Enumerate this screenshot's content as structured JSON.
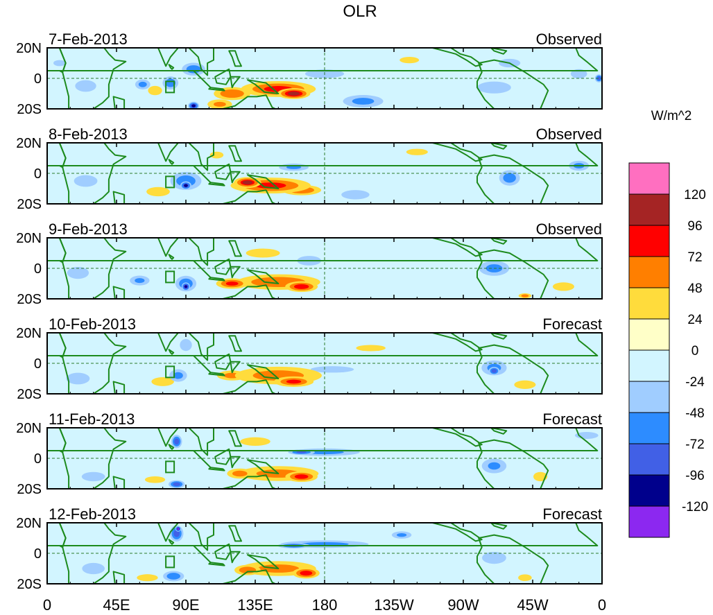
{
  "chart_data": {
    "type": "heatmap",
    "title": "OLR",
    "colorbar_label": "W/m^2",
    "x_ticks": [
      "0",
      "45E",
      "90E",
      "135E",
      "180",
      "135W",
      "90W",
      "45W",
      "0"
    ],
    "x_tick_lon": [
      0,
      45,
      90,
      135,
      180,
      225,
      270,
      315,
      360
    ],
    "y_ticks": [
      "20N",
      "0",
      "20S"
    ],
    "y_tick_lat": [
      20,
      0,
      -20
    ],
    "xlim": [
      0,
      360
    ],
    "ylim": [
      -20,
      20
    ],
    "levels": [
      "120",
      "96",
      "72",
      "48",
      "24",
      "0",
      "-24",
      "-48",
      "-72",
      "-96",
      "-120"
    ],
    "colors": [
      "#ff6fc0",
      "#a52424",
      "#ff0000",
      "#ff7f00",
      "#ffdc3c",
      "#ffffc8",
      "#d2f5ff",
      "#a0cdff",
      "#2d8cff",
      "#4160e6",
      "#00008c",
      "#8c28f0"
    ],
    "reference_lines": {
      "equator_lat": 0,
      "dateline_lon": 180
    },
    "panels": [
      {
        "date": "7-Feb-2013",
        "label": "Observed",
        "blobs": [
          {
            "lon": 150,
            "lat": -7,
            "rx": 28,
            "ry": 6,
            "v": 80
          },
          {
            "lon": 160,
            "lat": -10,
            "rx": 12,
            "ry": 4,
            "v": 105
          },
          {
            "lon": 120,
            "lat": -10,
            "rx": 14,
            "ry": 5,
            "v": 70
          },
          {
            "lon": 112,
            "lat": -17,
            "rx": 10,
            "ry": 4,
            "v": 50
          },
          {
            "lon": 70,
            "lat": -8,
            "rx": 6,
            "ry": 4,
            "v": 40
          },
          {
            "lon": 95,
            "lat": 6,
            "rx": 9,
            "ry": 5,
            "v": -65
          },
          {
            "lon": 80,
            "lat": -3,
            "rx": 6,
            "ry": 5,
            "v": -70
          },
          {
            "lon": 62,
            "lat": -4,
            "rx": 6,
            "ry": 4,
            "v": -55
          },
          {
            "lon": 95,
            "lat": -18,
            "rx": 4,
            "ry": 3,
            "v": -110
          },
          {
            "lon": 205,
            "lat": -15,
            "rx": 16,
            "ry": 5,
            "v": -55
          },
          {
            "lon": 180,
            "lat": 3,
            "rx": 18,
            "ry": 4,
            "v": -30
          },
          {
            "lon": 25,
            "lat": -5,
            "rx": 9,
            "ry": 5,
            "v": -40
          },
          {
            "lon": 290,
            "lat": -6,
            "rx": 14,
            "ry": 5,
            "v": -45
          },
          {
            "lon": 300,
            "lat": 10,
            "rx": 10,
            "ry": 4,
            "v": -30
          },
          {
            "lon": 345,
            "lat": 3,
            "rx": 7,
            "ry": 4,
            "v": -40
          },
          {
            "lon": 358,
            "lat": 0,
            "rx": 3,
            "ry": 3,
            "v": -90
          },
          {
            "lon": 235,
            "lat": 12,
            "rx": 9,
            "ry": 3,
            "v": 30
          },
          {
            "lon": 8,
            "lat": 10,
            "rx": 6,
            "ry": 3,
            "v": -25
          }
        ]
      },
      {
        "date": "8-Feb-2013",
        "label": "Observed",
        "blobs": [
          {
            "lon": 145,
            "lat": -8,
            "rx": 30,
            "ry": 6,
            "v": 80
          },
          {
            "lon": 165,
            "lat": -11,
            "rx": 15,
            "ry": 4,
            "v": 70
          },
          {
            "lon": 130,
            "lat": -6,
            "rx": 10,
            "ry": 4,
            "v": 100
          },
          {
            "lon": 72,
            "lat": -12,
            "rx": 10,
            "ry": 4,
            "v": 40
          },
          {
            "lon": 90,
            "lat": -5,
            "rx": 12,
            "ry": 7,
            "v": -65
          },
          {
            "lon": 90,
            "lat": -8,
            "rx": 4,
            "ry": 3,
            "v": -110
          },
          {
            "lon": 160,
            "lat": 4,
            "rx": 12,
            "ry": 3,
            "v": -50
          },
          {
            "lon": 200,
            "lat": -14,
            "rx": 12,
            "ry": 4,
            "v": -40
          },
          {
            "lon": 300,
            "lat": -3,
            "rx": 8,
            "ry": 6,
            "v": -65
          },
          {
            "lon": 25,
            "lat": -5,
            "rx": 10,
            "ry": 5,
            "v": -40
          },
          {
            "lon": 345,
            "lat": 5,
            "rx": 8,
            "ry": 4,
            "v": -55
          },
          {
            "lon": 240,
            "lat": 14,
            "rx": 10,
            "ry": 3,
            "v": 30
          },
          {
            "lon": 110,
            "lat": 12,
            "rx": 6,
            "ry": 3,
            "v": 35
          }
        ]
      },
      {
        "date": "9-Feb-2013",
        "label": "Observed",
        "blobs": [
          {
            "lon": 150,
            "lat": -9,
            "rx": 32,
            "ry": 6,
            "v": 70
          },
          {
            "lon": 120,
            "lat": -10,
            "rx": 12,
            "ry": 4,
            "v": 80
          },
          {
            "lon": 165,
            "lat": -12,
            "rx": 12,
            "ry": 4,
            "v": 90
          },
          {
            "lon": 90,
            "lat": -10,
            "rx": 8,
            "ry": 6,
            "v": -70
          },
          {
            "lon": 90,
            "lat": -12,
            "rx": 3,
            "ry": 3,
            "v": -120
          },
          {
            "lon": 60,
            "lat": -8,
            "rx": 8,
            "ry": 4,
            "v": -50
          },
          {
            "lon": 170,
            "lat": 5,
            "rx": 10,
            "ry": 4,
            "v": -45
          },
          {
            "lon": 290,
            "lat": 0,
            "rx": 12,
            "ry": 6,
            "v": -55
          },
          {
            "lon": 20,
            "lat": -3,
            "rx": 9,
            "ry": 5,
            "v": -45
          },
          {
            "lon": 140,
            "lat": 10,
            "rx": 15,
            "ry": 4,
            "v": 35
          },
          {
            "lon": 310,
            "lat": -18,
            "rx": 5,
            "ry": 2,
            "v": 60
          },
          {
            "lon": 335,
            "lat": -12,
            "rx": 10,
            "ry": 4,
            "v": 30
          }
        ]
      },
      {
        "date": "10-Feb-2013",
        "label": "Forecast",
        "blobs": [
          {
            "lon": 150,
            "lat": -8,
            "rx": 34,
            "ry": 7,
            "v": 60
          },
          {
            "lon": 160,
            "lat": -12,
            "rx": 15,
            "ry": 4,
            "v": 75
          },
          {
            "lon": 120,
            "lat": -8,
            "rx": 12,
            "ry": 4,
            "v": 55
          },
          {
            "lon": 75,
            "lat": -12,
            "rx": 10,
            "ry": 4,
            "v": 35
          },
          {
            "lon": 85,
            "lat": -8,
            "rx": 7,
            "ry": 5,
            "v": -55
          },
          {
            "lon": 90,
            "lat": 12,
            "rx": 5,
            "ry": 5,
            "v": -45
          },
          {
            "lon": 185,
            "lat": -4,
            "rx": 20,
            "ry": 3,
            "v": -30
          },
          {
            "lon": 290,
            "lat": -3,
            "rx": 10,
            "ry": 6,
            "v": -55
          },
          {
            "lon": 290,
            "lat": -5,
            "rx": 4,
            "ry": 3,
            "v": -95
          },
          {
            "lon": 20,
            "lat": -10,
            "rx": 10,
            "ry": 5,
            "v": -40
          },
          {
            "lon": 310,
            "lat": -14,
            "rx": 10,
            "ry": 4,
            "v": 30
          },
          {
            "lon": 210,
            "lat": 10,
            "rx": 14,
            "ry": 3,
            "v": 28
          }
        ]
      },
      {
        "date": "11-Feb-2013",
        "label": "Forecast",
        "blobs": [
          {
            "lon": 150,
            "lat": -10,
            "rx": 32,
            "ry": 6,
            "v": 55
          },
          {
            "lon": 165,
            "lat": -12,
            "rx": 12,
            "ry": 4,
            "v": 85
          },
          {
            "lon": 125,
            "lat": -10,
            "rx": 10,
            "ry": 4,
            "v": 60
          },
          {
            "lon": 180,
            "lat": 4,
            "rx": 28,
            "ry": 3,
            "v": -55
          },
          {
            "lon": 165,
            "lat": 4,
            "rx": 10,
            "ry": 2,
            "v": -80
          },
          {
            "lon": 84,
            "lat": 11,
            "rx": 4,
            "ry": 5,
            "v": -90
          },
          {
            "lon": 84,
            "lat": -17,
            "rx": 6,
            "ry": 3,
            "v": -90
          },
          {
            "lon": 70,
            "lat": -14,
            "rx": 9,
            "ry": 3,
            "v": 35
          },
          {
            "lon": 290,
            "lat": -5,
            "rx": 10,
            "ry": 6,
            "v": -50
          },
          {
            "lon": 30,
            "lat": -12,
            "rx": 10,
            "ry": 4,
            "v": -40
          },
          {
            "lon": 320,
            "lat": -12,
            "rx": 6,
            "ry": 4,
            "v": 40
          },
          {
            "lon": 350,
            "lat": 15,
            "rx": 10,
            "ry": 3,
            "v": -40
          },
          {
            "lon": 135,
            "lat": 11,
            "rx": 14,
            "ry": 4,
            "v": 30
          }
        ]
      },
      {
        "date": "12-Feb-2013",
        "label": "Forecast",
        "blobs": [
          {
            "lon": 150,
            "lat": -10,
            "rx": 30,
            "ry": 6,
            "v": 55
          },
          {
            "lon": 168,
            "lat": -13,
            "rx": 10,
            "ry": 4,
            "v": 90
          },
          {
            "lon": 130,
            "lat": -11,
            "rx": 10,
            "ry": 4,
            "v": 70
          },
          {
            "lon": 180,
            "lat": 6,
            "rx": 35,
            "ry": 3,
            "v": -55
          },
          {
            "lon": 160,
            "lat": 5,
            "rx": 12,
            "ry": 2,
            "v": -85
          },
          {
            "lon": 84,
            "lat": 13,
            "rx": 5,
            "ry": 6,
            "v": -90
          },
          {
            "lon": 85,
            "lat": 16,
            "rx": 2,
            "ry": 2,
            "v": -125
          },
          {
            "lon": 82,
            "lat": -15,
            "rx": 8,
            "ry": 4,
            "v": -70
          },
          {
            "lon": 230,
            "lat": 12,
            "rx": 8,
            "ry": 3,
            "v": -50
          },
          {
            "lon": 65,
            "lat": -16,
            "rx": 9,
            "ry": 3,
            "v": 40
          },
          {
            "lon": 290,
            "lat": -3,
            "rx": 10,
            "ry": 5,
            "v": -45
          },
          {
            "lon": 310,
            "lat": -16,
            "rx": 6,
            "ry": 3,
            "v": 35
          },
          {
            "lon": 30,
            "lat": -10,
            "rx": 10,
            "ry": 5,
            "v": -35
          }
        ]
      }
    ]
  }
}
